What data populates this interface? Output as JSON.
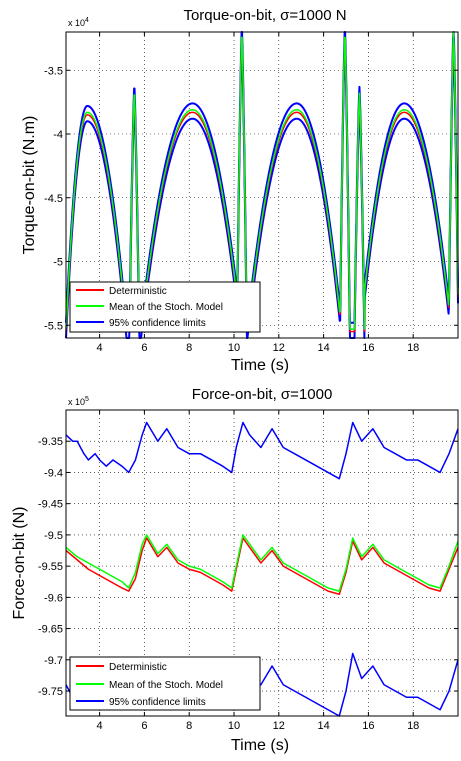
{
  "colors": {
    "deterministic": "#ff0000",
    "mean": "#00ff00",
    "confidence": "#0000ff",
    "axes": "#000000",
    "grid": "#000000"
  },
  "chart_data": [
    {
      "type": "line",
      "title": "Torque-on-bit, σ=1000 N",
      "xlabel": "Time (s)",
      "ylabel": "Torque-on-bit (N.m)",
      "y_multiplier": "x 10",
      "y_multiplier_exp": "4",
      "xlim": [
        2.5,
        20
      ],
      "ylim": [
        -5.6,
        -3.2
      ],
      "xticks": [
        4,
        6,
        8,
        10,
        12,
        14,
        16,
        18
      ],
      "yticks": [
        -3.5,
        -4,
        -4.5,
        -5,
        -5.5
      ],
      "ytick_labels": [
        "-3.5",
        "-4",
        "-4.5",
        "-5",
        "-5.5"
      ],
      "grid": true,
      "legend_position": "bottom-left",
      "legend": [
        "Deterministic",
        "Mean of the Stoch. Model",
        "95% confidence limits"
      ],
      "bottom_y": -5.55,
      "humps": [
        {
          "start": 2.5,
          "end": 5.2,
          "peak": 3.45,
          "peakY": -3.85
        },
        {
          "start": 5.85,
          "end": 10.3,
          "peak": 8.15,
          "peakY": -3.83
        },
        {
          "start": 10.6,
          "end": 14.8,
          "peak": 12.8,
          "peakY": -3.83
        },
        {
          "start": 15.65,
          "end": 19.7,
          "peak": 17.6,
          "peakY": -3.83
        }
      ],
      "spikes": [
        {
          "x": 5.55,
          "y": -3.68
        },
        {
          "x": 10.35,
          "y": -3.22
        },
        {
          "x": 14.95,
          "y": -3.22
        },
        {
          "x": 15.6,
          "y": -3.7
        },
        {
          "x": 19.8,
          "y": -3.22
        }
      ],
      "band_offsets": {
        "upper": 0.07,
        "lower": 0.05,
        "mean": 0.02
      }
    },
    {
      "type": "line",
      "title": "Force-on-bit, σ=1000",
      "xlabel": "Time (s)",
      "ylabel": "Force-on-bit (N)",
      "y_multiplier": "x 10",
      "y_multiplier_exp": "5",
      "xlim": [
        2.5,
        20
      ],
      "ylim": [
        -9.79,
        -9.3
      ],
      "xticks": [
        4,
        6,
        8,
        10,
        12,
        14,
        16,
        18
      ],
      "yticks": [
        -9.35,
        -9.4,
        -9.45,
        -9.5,
        -9.55,
        -9.6,
        -9.65,
        -9.7,
        -9.75
      ],
      "ytick_labels": [
        "-9.35",
        "-9.4",
        "-9.45",
        "-9.5",
        "-9.55",
        "-9.6",
        "-9.65",
        "-9.7",
        "-9.75"
      ],
      "grid": true,
      "legend_position": "bottom-left",
      "legend": [
        "Deterministic",
        "Mean of the Stoch. Model",
        "95% confidence limits"
      ],
      "series": [
        {
          "x": [
            2.5,
            3.0,
            3.5,
            4.0,
            4.5,
            5.0,
            5.3,
            5.6,
            5.9,
            6.1,
            6.6,
            7.0,
            7.5,
            8.0,
            8.5,
            9.0,
            9.5,
            9.9,
            10.1,
            10.4,
            10.7,
            11.2,
            11.7,
            12.2,
            12.7,
            13.2,
            13.7,
            14.2,
            14.7,
            15.0,
            15.3,
            15.7,
            16.2,
            16.7,
            17.2,
            17.7,
            18.2,
            18.7,
            19.2,
            19.6,
            20.0
          ],
          "y": [
            -9.525,
            -9.54,
            -9.555,
            -9.565,
            -9.575,
            -9.585,
            -9.59,
            -9.57,
            -9.525,
            -9.505,
            -9.535,
            -9.52,
            -9.545,
            -9.555,
            -9.56,
            -9.57,
            -9.58,
            -9.59,
            -9.555,
            -9.505,
            -9.52,
            -9.545,
            -9.525,
            -9.55,
            -9.56,
            -9.57,
            -9.58,
            -9.59,
            -9.595,
            -9.56,
            -9.51,
            -9.54,
            -9.52,
            -9.545,
            -9.555,
            -9.565,
            -9.575,
            -9.585,
            -9.59,
            -9.555,
            -9.52
          ]
        },
        {
          "x": [
            2.5,
            3.0,
            3.5,
            4.0,
            4.5,
            5.0,
            5.3,
            5.6,
            5.9,
            6.1,
            6.6,
            7.0,
            7.5,
            8.0,
            8.5,
            9.0,
            9.5,
            9.9,
            10.1,
            10.4,
            10.7,
            11.2,
            11.7,
            12.2,
            12.7,
            13.2,
            13.7,
            14.2,
            14.7,
            15.0,
            15.3,
            15.7,
            16.2,
            16.7,
            17.2,
            17.7,
            18.2,
            18.7,
            19.2,
            19.6,
            20.0
          ],
          "y": [
            -9.52,
            -9.535,
            -9.545,
            -9.555,
            -9.565,
            -9.575,
            -9.585,
            -9.56,
            -9.515,
            -9.5,
            -9.53,
            -9.515,
            -9.54,
            -9.55,
            -9.555,
            -9.565,
            -9.575,
            -9.585,
            -9.55,
            -9.5,
            -9.515,
            -9.54,
            -9.52,
            -9.545,
            -9.555,
            -9.565,
            -9.575,
            -9.585,
            -9.59,
            -9.555,
            -9.505,
            -9.535,
            -9.515,
            -9.54,
            -9.55,
            -9.56,
            -9.57,
            -9.58,
            -9.585,
            -9.55,
            -9.51
          ]
        },
        {
          "x": [
            2.5,
            2.8,
            3.0,
            3.3,
            3.5,
            3.8,
            4.0,
            4.3,
            4.6,
            5.0,
            5.3,
            5.6,
            5.9,
            6.1,
            6.6,
            7.0,
            7.5,
            8.0,
            8.5,
            9.0,
            9.5,
            9.9,
            10.1,
            10.4,
            10.7,
            11.2,
            11.7,
            12.2,
            12.7,
            13.2,
            13.7,
            14.2,
            14.7,
            15.0,
            15.3,
            15.7,
            16.2,
            16.7,
            17.2,
            17.7,
            18.2,
            18.7,
            19.2,
            19.6,
            20.0
          ],
          "y": [
            -9.34,
            -9.35,
            -9.35,
            -9.37,
            -9.38,
            -9.37,
            -9.38,
            -9.39,
            -9.38,
            -9.39,
            -9.4,
            -9.38,
            -9.34,
            -9.32,
            -9.35,
            -9.33,
            -9.36,
            -9.37,
            -9.37,
            -9.38,
            -9.39,
            -9.4,
            -9.36,
            -9.32,
            -9.34,
            -9.36,
            -9.33,
            -9.36,
            -9.37,
            -9.38,
            -9.39,
            -9.4,
            -9.41,
            -9.37,
            -9.32,
            -9.35,
            -9.33,
            -9.36,
            -9.37,
            -9.38,
            -9.38,
            -9.39,
            -9.4,
            -9.37,
            -9.33
          ]
        },
        {
          "x": [
            2.5,
            2.8,
            3.0,
            3.3,
            3.5,
            3.8,
            4.0,
            4.3,
            4.6,
            5.0,
            5.3,
            5.6,
            5.9,
            6.1,
            6.6,
            7.0,
            7.5,
            8.0,
            8.5,
            9.0,
            9.5,
            9.9,
            10.1,
            10.4,
            10.7,
            11.2,
            11.7,
            12.2,
            12.7,
            13.2,
            13.7,
            14.2,
            14.7,
            15.0,
            15.3,
            15.7,
            16.2,
            16.7,
            17.2,
            17.7,
            18.2,
            18.7,
            19.2,
            19.6,
            20.0
          ],
          "y": [
            -9.74,
            -9.76,
            -9.77,
            -9.75,
            -9.77,
            -9.78,
            -9.77,
            -9.78,
            -9.77,
            -9.77,
            -9.78,
            -9.76,
            -9.72,
            -9.7,
            -9.73,
            -9.71,
            -9.74,
            -9.75,
            -9.75,
            -9.76,
            -9.77,
            -9.78,
            -9.74,
            -9.7,
            -9.72,
            -9.74,
            -9.71,
            -9.74,
            -9.75,
            -9.76,
            -9.77,
            -9.78,
            -9.79,
            -9.75,
            -9.69,
            -9.73,
            -9.71,
            -9.74,
            -9.75,
            -9.76,
            -9.76,
            -9.77,
            -9.78,
            -9.75,
            -9.7
          ]
        }
      ]
    }
  ]
}
